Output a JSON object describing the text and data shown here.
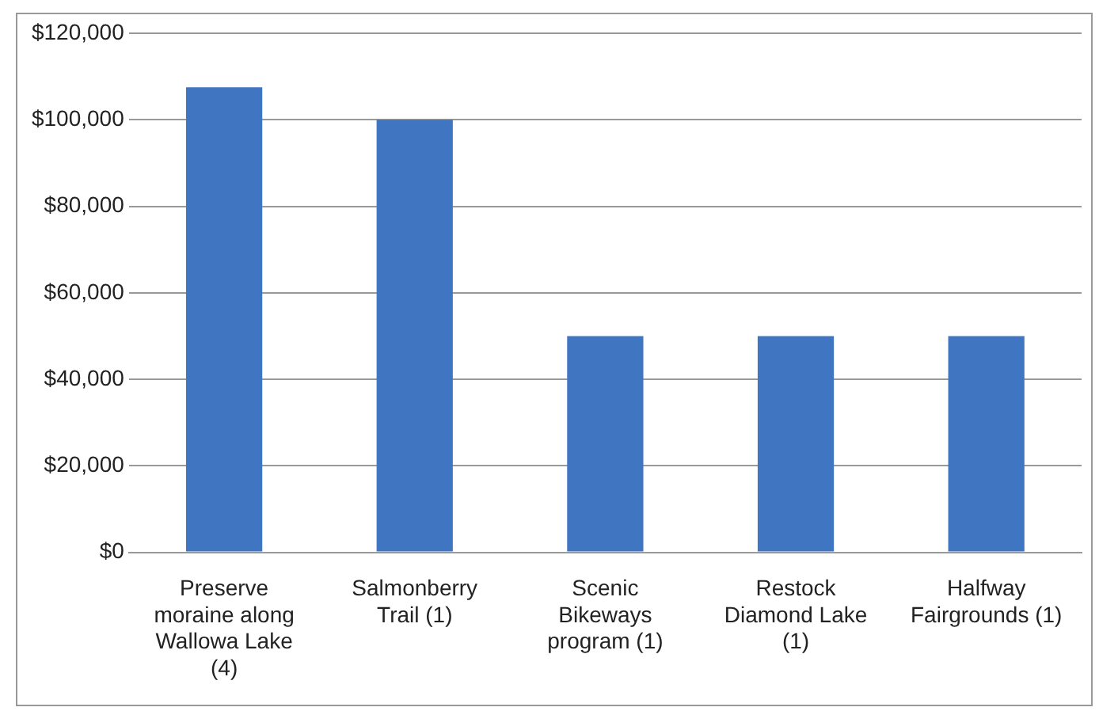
{
  "chart_data": {
    "type": "bar",
    "categories": [
      "Preserve moraine along Wallowa Lake (4)",
      "Salmonberry Trail (1)",
      "Scenic Bikeways program (1)",
      "Restock Diamond Lake (1)",
      "Halfway Fairgrounds (1)"
    ],
    "values": [
      107500,
      100000,
      50000,
      50000,
      50000
    ],
    "color": "#4075c2",
    "ylim": [
      0,
      120000
    ],
    "yticks": [
      {
        "value": 0,
        "label": "$0"
      },
      {
        "value": 20000,
        "label": "$20,000"
      },
      {
        "value": 40000,
        "label": "$40,000"
      },
      {
        "value": 60000,
        "label": "$60,000"
      },
      {
        "value": 80000,
        "label": "$80,000"
      },
      {
        "value": 100000,
        "label": "$100,000"
      },
      {
        "value": 120000,
        "label": "$120,000"
      }
    ],
    "grid": "y",
    "legend": false
  }
}
